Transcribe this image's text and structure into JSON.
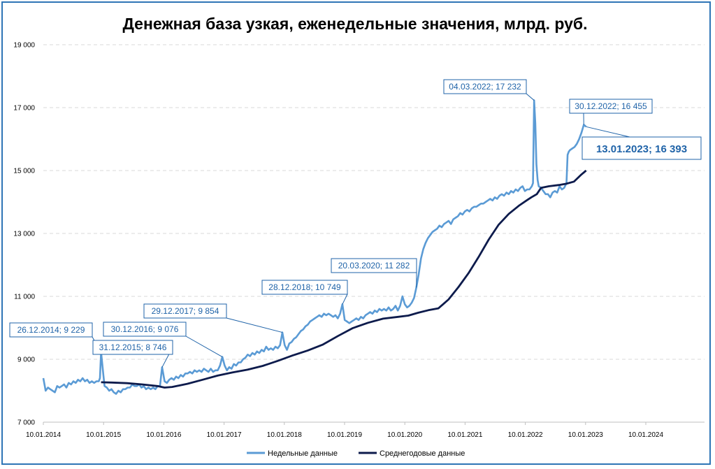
{
  "chart_data": {
    "type": "line",
    "title": "Денежная база узкая, еженедельные значения, млрд. руб.",
    "ylim": [
      7000,
      19000
    ],
    "yticks": [
      7000,
      9000,
      11000,
      13000,
      15000,
      17000,
      19000
    ],
    "ytick_labels": [
      "7 000",
      "9 000",
      "11 000",
      "13 000",
      "15 000",
      "17 000",
      "19 000"
    ],
    "xlim": [
      "2014-01-10",
      "2024-01-10"
    ],
    "xtick_labels": [
      "10.01.2014",
      "10.01.2015",
      "10.01.2016",
      "10.01.2017",
      "10.01.2018",
      "10.01.2019",
      "10.01.2020",
      "10.01.2021",
      "10.01.2022",
      "10.01.2023",
      "10.01.2024"
    ],
    "grid": "horizontal",
    "legend_position": "bottom",
    "colors": {
      "weekly": "#5b9bd5",
      "annual": "#0d1b4c",
      "annotation": "#1f63a8",
      "frame": "#2e75b6"
    },
    "series": [
      {
        "name": "Недельные данные",
        "x": [
          "2014-01-10",
          "2014-01-24",
          "2014-02-07",
          "2014-02-21",
          "2014-03-07",
          "2014-03-21",
          "2014-04-04",
          "2014-04-18",
          "2014-05-02",
          "2014-05-16",
          "2014-05-30",
          "2014-06-13",
          "2014-06-27",
          "2014-07-11",
          "2014-07-25",
          "2014-08-08",
          "2014-08-22",
          "2014-09-05",
          "2014-09-19",
          "2014-10-03",
          "2014-10-17",
          "2014-10-31",
          "2014-11-14",
          "2014-11-28",
          "2014-12-12",
          "2014-12-19",
          "2014-12-26",
          "2015-01-09",
          "2015-01-16",
          "2015-01-30",
          "2015-02-13",
          "2015-02-27",
          "2015-03-13",
          "2015-03-27",
          "2015-04-10",
          "2015-04-24",
          "2015-05-08",
          "2015-05-22",
          "2015-06-05",
          "2015-06-19",
          "2015-07-03",
          "2015-07-17",
          "2015-07-31",
          "2015-08-14",
          "2015-08-28",
          "2015-09-11",
          "2015-09-25",
          "2015-10-09",
          "2015-10-23",
          "2015-11-06",
          "2015-11-20",
          "2015-12-04",
          "2015-12-18",
          "2015-12-31",
          "2016-01-15",
          "2016-01-29",
          "2016-02-12",
          "2016-02-26",
          "2016-03-11",
          "2016-03-25",
          "2016-04-08",
          "2016-04-22",
          "2016-05-06",
          "2016-05-20",
          "2016-06-03",
          "2016-06-17",
          "2016-07-01",
          "2016-07-15",
          "2016-07-29",
          "2016-08-12",
          "2016-08-26",
          "2016-09-09",
          "2016-09-23",
          "2016-10-07",
          "2016-10-21",
          "2016-11-04",
          "2016-11-18",
          "2016-12-02",
          "2016-12-16",
          "2016-12-30",
          "2017-01-13",
          "2017-01-27",
          "2017-02-10",
          "2017-02-24",
          "2017-03-10",
          "2017-03-24",
          "2017-04-07",
          "2017-04-21",
          "2017-05-05",
          "2017-05-19",
          "2017-06-02",
          "2017-06-16",
          "2017-06-30",
          "2017-07-14",
          "2017-07-28",
          "2017-08-11",
          "2017-08-25",
          "2017-09-08",
          "2017-09-22",
          "2017-10-06",
          "2017-10-20",
          "2017-11-03",
          "2017-11-17",
          "2017-12-01",
          "2017-12-15",
          "2017-12-29",
          "2018-01-12",
          "2018-01-26",
          "2018-02-09",
          "2018-02-23",
          "2018-03-09",
          "2018-03-23",
          "2018-04-06",
          "2018-04-20",
          "2018-05-04",
          "2018-05-18",
          "2018-06-01",
          "2018-06-15",
          "2018-06-29",
          "2018-07-13",
          "2018-07-27",
          "2018-08-10",
          "2018-08-24",
          "2018-09-07",
          "2018-09-21",
          "2018-10-05",
          "2018-10-19",
          "2018-11-02",
          "2018-11-16",
          "2018-11-30",
          "2018-12-14",
          "2018-12-28",
          "2019-01-11",
          "2019-01-25",
          "2019-02-08",
          "2019-02-22",
          "2019-03-08",
          "2019-03-22",
          "2019-04-05",
          "2019-04-19",
          "2019-05-03",
          "2019-05-17",
          "2019-05-31",
          "2019-06-14",
          "2019-06-28",
          "2019-07-12",
          "2019-07-26",
          "2019-08-09",
          "2019-08-23",
          "2019-09-06",
          "2019-09-20",
          "2019-10-04",
          "2019-10-18",
          "2019-11-01",
          "2019-11-15",
          "2019-11-29",
          "2019-12-13",
          "2019-12-27",
          "2020-01-10",
          "2020-01-24",
          "2020-02-07",
          "2020-02-21",
          "2020-03-06",
          "2020-03-20",
          "2020-04-03",
          "2020-04-17",
          "2020-05-01",
          "2020-05-15",
          "2020-05-29",
          "2020-06-12",
          "2020-06-26",
          "2020-07-10",
          "2020-07-24",
          "2020-08-07",
          "2020-08-21",
          "2020-09-04",
          "2020-09-18",
          "2020-10-02",
          "2020-10-16",
          "2020-10-30",
          "2020-11-13",
          "2020-11-27",
          "2020-12-11",
          "2020-12-25",
          "2021-01-08",
          "2021-01-22",
          "2021-02-05",
          "2021-02-19",
          "2021-03-05",
          "2021-03-19",
          "2021-04-02",
          "2021-04-16",
          "2021-04-30",
          "2021-05-14",
          "2021-05-28",
          "2021-06-11",
          "2021-06-25",
          "2021-07-09",
          "2021-07-23",
          "2021-08-06",
          "2021-08-20",
          "2021-09-03",
          "2021-09-17",
          "2021-10-01",
          "2021-10-15",
          "2021-10-29",
          "2021-11-12",
          "2021-11-26",
          "2021-12-10",
          "2021-12-24",
          "2022-01-07",
          "2022-01-21",
          "2022-02-04",
          "2022-02-18",
          "2022-02-25",
          "2022-03-04",
          "2022-03-11",
          "2022-03-18",
          "2022-03-25",
          "2022-04-01",
          "2022-04-15",
          "2022-04-29",
          "2022-05-13",
          "2022-05-27",
          "2022-06-10",
          "2022-06-24",
          "2022-07-08",
          "2022-07-22",
          "2022-08-05",
          "2022-08-19",
          "2022-09-02",
          "2022-09-16",
          "2022-09-23",
          "2022-09-30",
          "2022-10-07",
          "2022-10-21",
          "2022-11-04",
          "2022-11-18",
          "2022-12-02",
          "2022-12-16",
          "2022-12-30",
          "2023-01-13"
        ],
        "values": [
          8400,
          8000,
          8100,
          8050,
          8000,
          7950,
          8150,
          8100,
          8150,
          8200,
          8100,
          8250,
          8200,
          8300,
          8250,
          8350,
          8300,
          8400,
          8300,
          8350,
          8250,
          8300,
          8250,
          8300,
          8300,
          8400,
          9229,
          8500,
          8150,
          8100,
          8000,
          8050,
          7950,
          7900,
          8000,
          7950,
          8050,
          8050,
          8100,
          8100,
          8200,
          8150,
          8150,
          8200,
          8100,
          8150,
          8050,
          8100,
          8050,
          8100,
          8050,
          8150,
          8150,
          8746,
          8300,
          8250,
          8350,
          8400,
          8350,
          8450,
          8400,
          8500,
          8450,
          8550,
          8550,
          8600,
          8550,
          8650,
          8600,
          8650,
          8600,
          8700,
          8650,
          8600,
          8700,
          8600,
          8650,
          8650,
          8800,
          9076,
          8800,
          8650,
          8750,
          8700,
          8850,
          8800,
          8900,
          8900,
          9000,
          9050,
          9150,
          9100,
          9200,
          9150,
          9250,
          9200,
          9300,
          9250,
          9400,
          9300,
          9350,
          9300,
          9400,
          9350,
          9450,
          9854,
          9450,
          9300,
          9500,
          9550,
          9650,
          9700,
          9800,
          9900,
          9950,
          10050,
          10100,
          10200,
          10250,
          10300,
          10350,
          10400,
          10350,
          10450,
          10400,
          10450,
          10400,
          10350,
          10400,
          10300,
          10450,
          10749,
          10250,
          10200,
          10150,
          10200,
          10250,
          10300,
          10250,
          10350,
          10300,
          10400,
          10450,
          10500,
          10450,
          10550,
          10500,
          10600,
          10550,
          10600,
          10550,
          10650,
          10550,
          10600,
          10700,
          10550,
          10700,
          11000,
          10750,
          10650,
          10700,
          10800,
          10950,
          11282,
          11700,
          12200,
          12500,
          12700,
          12850,
          12950,
          13050,
          13100,
          13150,
          13250,
          13200,
          13300,
          13350,
          13400,
          13300,
          13450,
          13500,
          13550,
          13650,
          13600,
          13700,
          13750,
          13700,
          13800,
          13850,
          13850,
          13900,
          13950,
          13950,
          14000,
          14050,
          14100,
          14050,
          14150,
          14100,
          14200,
          14250,
          14200,
          14300,
          14250,
          14350,
          14300,
          14400,
          14350,
          14450,
          14500,
          14350,
          14400,
          14400,
          14500,
          14600,
          17232,
          16500,
          15200,
          14700,
          14500,
          14450,
          14350,
          14250,
          14250,
          14150,
          14300,
          14350,
          14300,
          14500,
          14400,
          14450,
          14600,
          15500,
          15600,
          15650,
          15700,
          15750,
          15850,
          16000,
          16200,
          16455,
          16393
        ]
      },
      {
        "name": "Среднегодовые данные",
        "x": [
          "2014-12-26",
          "2015-03-01",
          "2015-06-01",
          "2015-09-01",
          "2015-12-01",
          "2016-01-15",
          "2016-03-01",
          "2016-06-01",
          "2016-09-01",
          "2016-12-01",
          "2017-03-01",
          "2017-06-01",
          "2017-09-01",
          "2017-12-01",
          "2018-03-01",
          "2018-06-01",
          "2018-09-01",
          "2018-12-01",
          "2019-03-01",
          "2019-06-01",
          "2019-09-01",
          "2019-12-01",
          "2020-02-01",
          "2020-04-01",
          "2020-06-01",
          "2020-08-01",
          "2020-10-01",
          "2020-12-01",
          "2021-02-01",
          "2021-04-01",
          "2021-06-01",
          "2021-08-01",
          "2021-10-01",
          "2021-12-01",
          "2022-01-20",
          "2022-02-15",
          "2022-03-20",
          "2022-04-15",
          "2022-06-01",
          "2022-08-01",
          "2022-09-15",
          "2022-11-01",
          "2022-12-15",
          "2023-01-13"
        ],
        "values": [
          8270,
          8260,
          8240,
          8200,
          8150,
          8100,
          8120,
          8220,
          8350,
          8480,
          8580,
          8670,
          8790,
          8950,
          9120,
          9280,
          9470,
          9740,
          9990,
          10160,
          10290,
          10350,
          10390,
          10480,
          10560,
          10620,
          10900,
          11300,
          11750,
          12250,
          12800,
          13280,
          13620,
          13880,
          14060,
          14150,
          14250,
          14450,
          14500,
          14540,
          14580,
          14650,
          14870,
          15000
        ]
      }
    ],
    "annotations": [
      {
        "label": "26.12.2014; 9 229",
        "x": "2014-12-26",
        "y": 9229
      },
      {
        "label": "31.12.2015; 8 746",
        "x": "2015-12-31",
        "y": 8746
      },
      {
        "label": "30.12.2016; 9 076",
        "x": "2016-12-30",
        "y": 9076
      },
      {
        "label": "29.12.2017; 9 854",
        "x": "2017-12-29",
        "y": 9854
      },
      {
        "label": "28.12.2018; 10 749",
        "x": "2018-12-28",
        "y": 10749
      },
      {
        "label": "20.03.2020; 11 282",
        "x": "2020-03-20",
        "y": 11282
      },
      {
        "label": "04.03.2022; 17 232",
        "x": "2022-03-04",
        "y": 17232
      },
      {
        "label": "30.12.2022; 16 455",
        "x": "2022-12-30",
        "y": 16455
      },
      {
        "label": "13.01.2023; 16 393",
        "x": "2023-01-13",
        "y": 16393,
        "emphasis": true
      }
    ]
  }
}
